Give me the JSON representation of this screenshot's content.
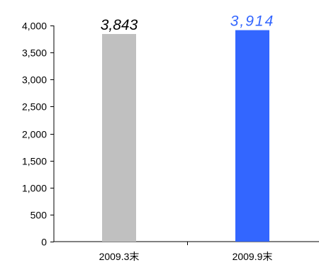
{
  "chart_data": {
    "type": "bar",
    "categories": [
      "2009.3末",
      "2009.9末"
    ],
    "values": [
      3843,
      3914
    ],
    "data_labels": [
      "3,843",
      "3,914"
    ],
    "y_ticks": [
      "0",
      "500",
      "1,000",
      "1,500",
      "2,000",
      "2,500",
      "3,000",
      "3,500",
      "4,000"
    ],
    "y_tick_values": [
      0,
      500,
      1000,
      1500,
      2000,
      2500,
      3000,
      3500,
      4000
    ],
    "ylim": [
      0,
      4000
    ],
    "grid": false,
    "legend": "none",
    "colors": {
      "bars": [
        "#c0c0c0",
        "#3366ff"
      ],
      "data_labels": [
        "#000000",
        "#3366ff"
      ]
    }
  }
}
